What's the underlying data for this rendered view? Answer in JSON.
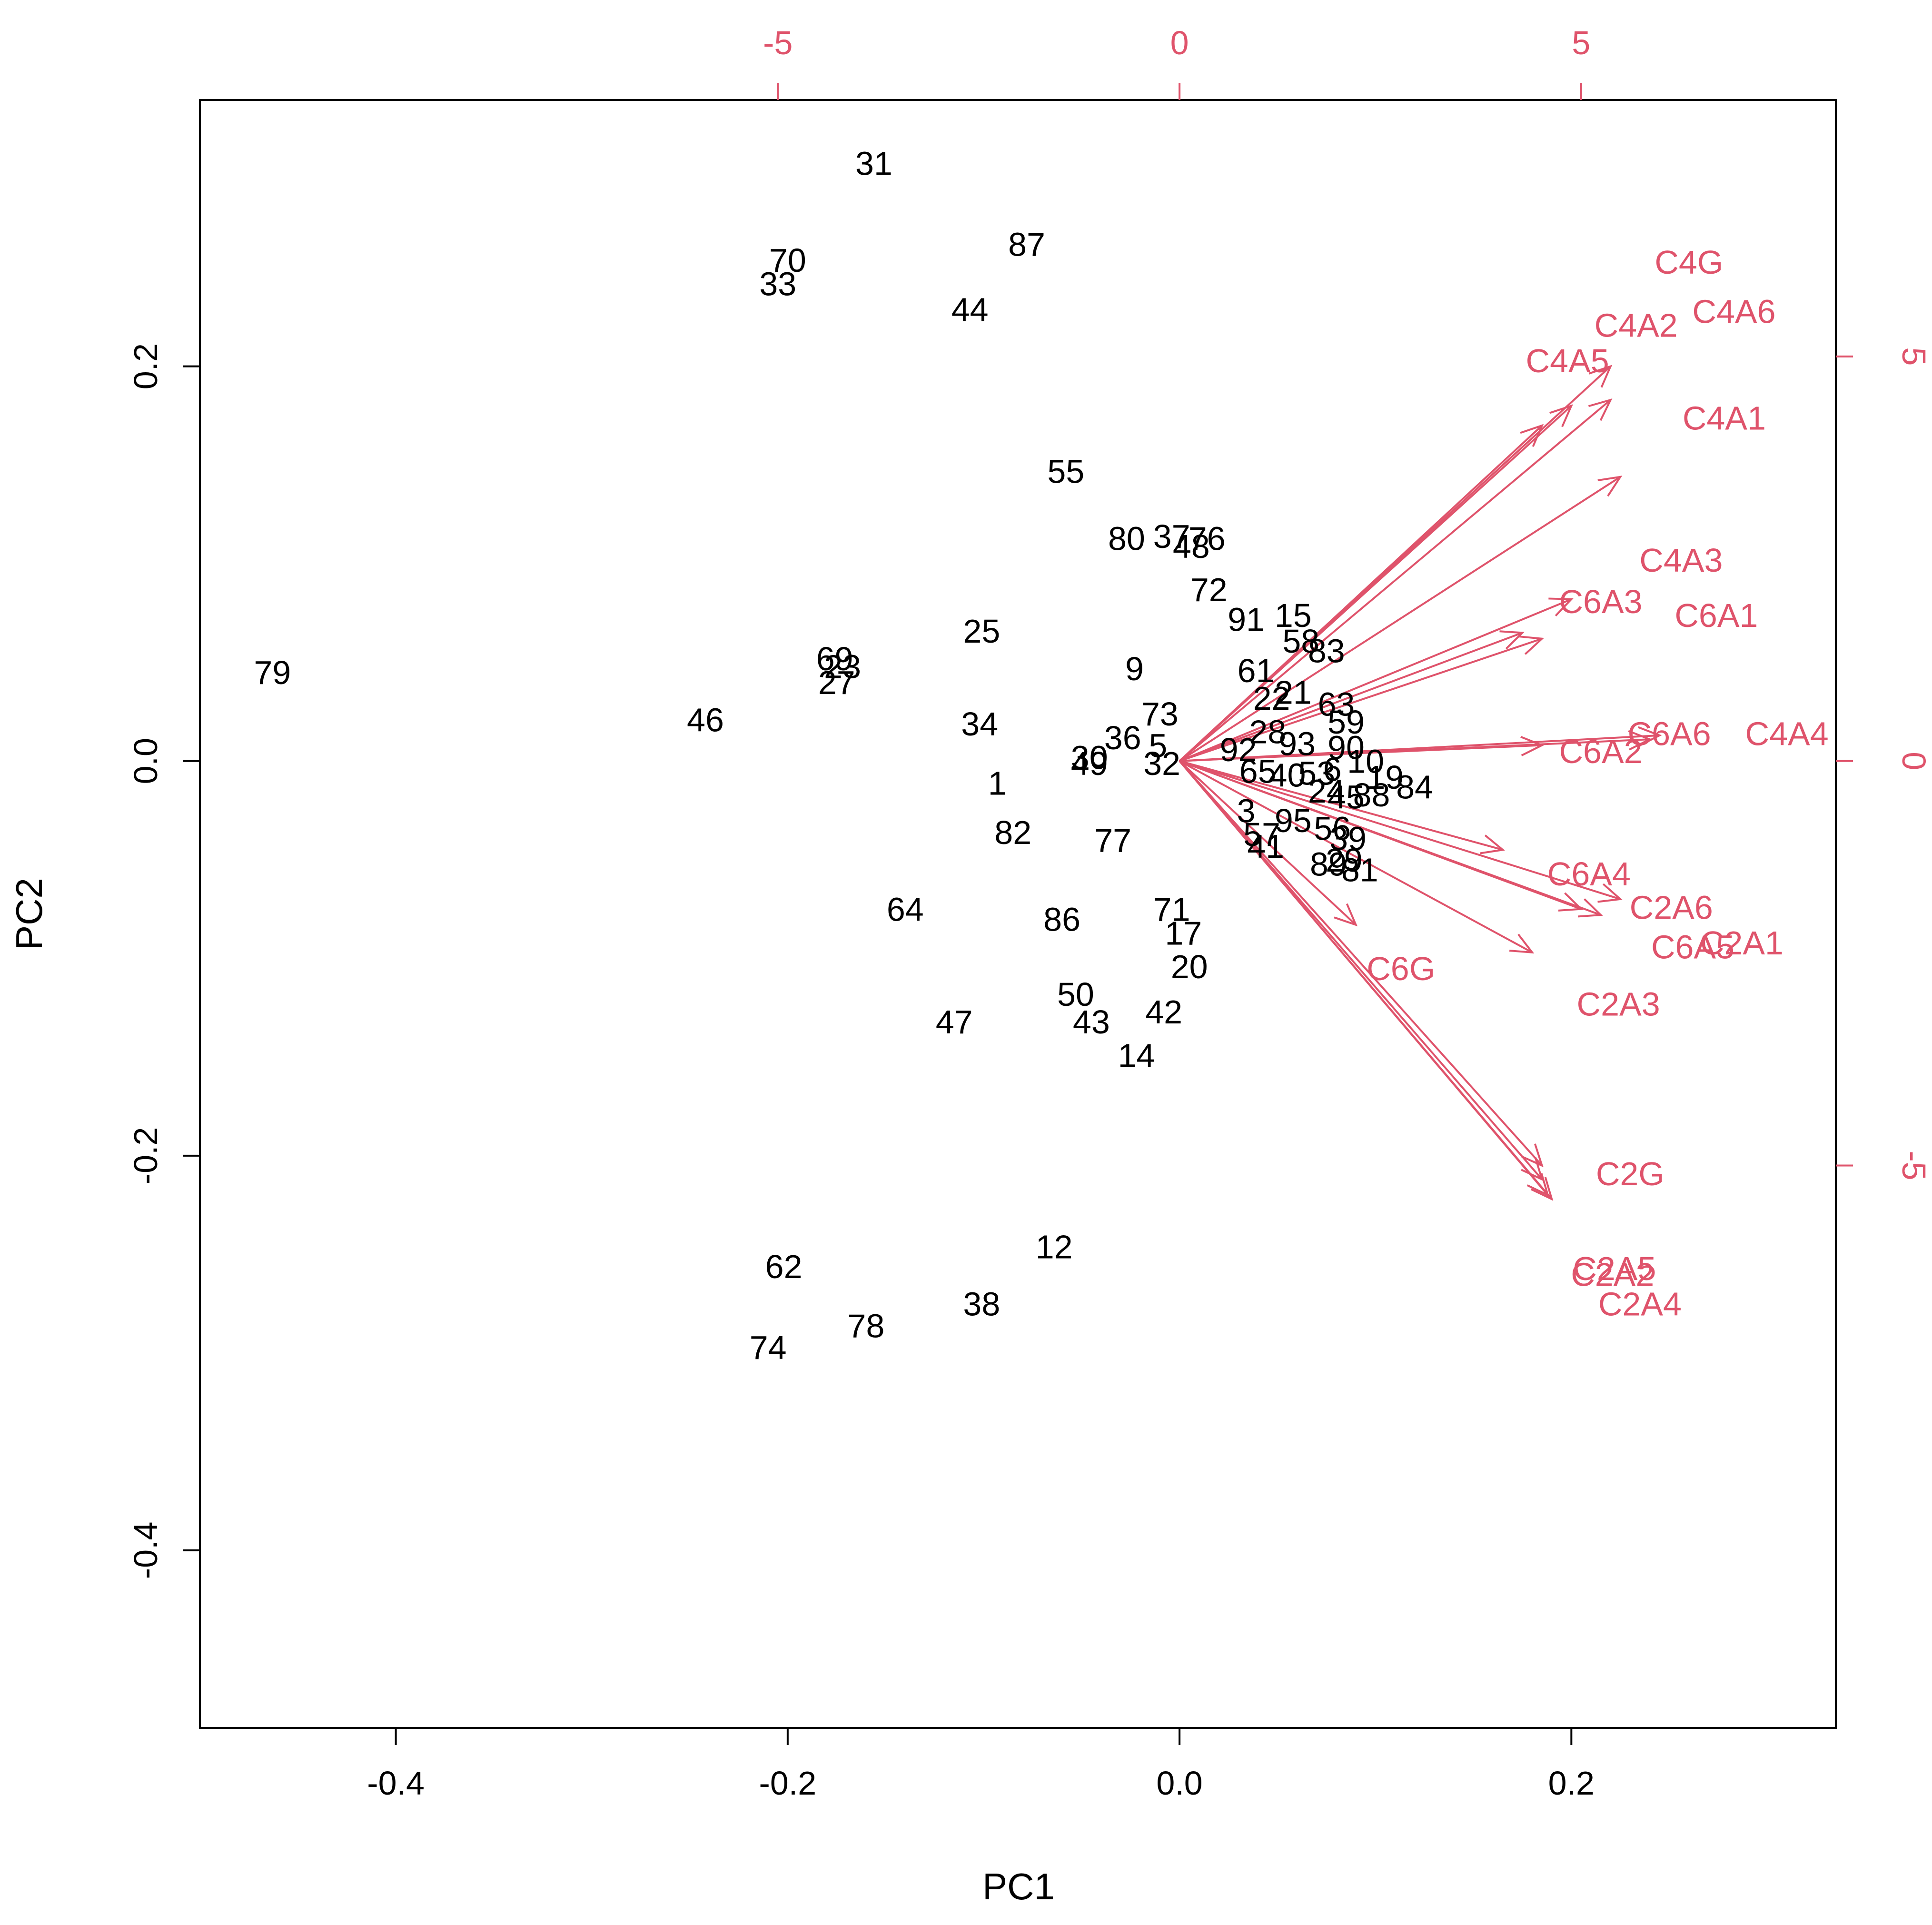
{
  "chart_data": {
    "type": "scatter",
    "subtype": "pca-biplot",
    "title": "",
    "xlabel": "PC1",
    "ylabel": "PC2",
    "xlim": [
      -0.5,
      0.335
    ],
    "ylim": [
      -0.49,
      0.335
    ],
    "xticks": [
      -0.4,
      -0.2,
      0.0,
      0.2
    ],
    "xtick_labels": [
      "-0.4",
      "-0.2",
      "0.0",
      "0.2"
    ],
    "yticks": [
      -0.4,
      -0.2,
      0.0,
      0.2
    ],
    "ytick_labels": [
      "-0.4",
      "-0.2",
      "0.0",
      "0.2"
    ],
    "secondary_xticks": [
      -5,
      0,
      5
    ],
    "secondary_xtick_labels": [
      "-5",
      "0",
      "5"
    ],
    "secondary_yticks": [
      -5,
      0,
      5
    ],
    "secondary_ytick_labels": [
      "-5",
      "0",
      "5"
    ],
    "observation_color": "#000000",
    "loading_color": "#DF536B",
    "observations": [
      {
        "label": "31",
        "x": -0.156,
        "y": 0.303
      },
      {
        "label": "70",
        "x": -0.2,
        "y": 0.254
      },
      {
        "label": "33",
        "x": -0.205,
        "y": 0.242
      },
      {
        "label": "87",
        "x": -0.078,
        "y": 0.262
      },
      {
        "label": "44",
        "x": -0.107,
        "y": 0.229
      },
      {
        "label": "55",
        "x": -0.058,
        "y": 0.147
      },
      {
        "label": "80",
        "x": -0.027,
        "y": 0.113
      },
      {
        "label": "37",
        "x": -0.004,
        "y": 0.114
      },
      {
        "label": "76",
        "x": 0.014,
        "y": 0.113
      },
      {
        "label": "48",
        "x": 0.006,
        "y": 0.109
      },
      {
        "label": "72",
        "x": 0.015,
        "y": 0.087
      },
      {
        "label": "91",
        "x": 0.034,
        "y": 0.072
      },
      {
        "label": "15",
        "x": 0.058,
        "y": 0.074
      },
      {
        "label": "58",
        "x": 0.062,
        "y": 0.061
      },
      {
        "label": "83",
        "x": 0.075,
        "y": 0.056
      },
      {
        "label": "25",
        "x": -0.101,
        "y": 0.066
      },
      {
        "label": "9",
        "x": -0.023,
        "y": 0.047
      },
      {
        "label": "61",
        "x": 0.039,
        "y": 0.046
      },
      {
        "label": "79",
        "x": -0.463,
        "y": 0.045
      },
      {
        "label": "69",
        "x": -0.176,
        "y": 0.052
      },
      {
        "label": "23",
        "x": -0.172,
        "y": 0.048
      },
      {
        "label": "27",
        "x": -0.175,
        "y": 0.04
      },
      {
        "label": "46",
        "x": -0.242,
        "y": 0.021
      },
      {
        "label": "34",
        "x": -0.102,
        "y": 0.019
      },
      {
        "label": "73",
        "x": -0.01,
        "y": 0.024
      },
      {
        "label": "36",
        "x": -0.029,
        "y": 0.012
      },
      {
        "label": "5",
        "x": -0.011,
        "y": 0.008
      },
      {
        "label": "30",
        "x": -0.046,
        "y": 0.002
      },
      {
        "label": "49",
        "x": -0.046,
        "y": -0.001
      },
      {
        "label": "32",
        "x": -0.009,
        "y": -0.001
      },
      {
        "label": "1",
        "x": -0.093,
        "y": -0.011
      },
      {
        "label": "82",
        "x": -0.085,
        "y": -0.036
      },
      {
        "label": "77",
        "x": -0.034,
        "y": -0.04
      },
      {
        "label": "64",
        "x": -0.14,
        "y": -0.075
      },
      {
        "label": "86",
        "x": -0.06,
        "y": -0.08
      },
      {
        "label": "71",
        "x": -0.004,
        "y": -0.075
      },
      {
        "label": "17",
        "x": 0.002,
        "y": -0.087
      },
      {
        "label": "20",
        "x": 0.005,
        "y": -0.104
      },
      {
        "label": "50",
        "x": -0.053,
        "y": -0.118
      },
      {
        "label": "43",
        "x": -0.045,
        "y": -0.132
      },
      {
        "label": "47",
        "x": -0.115,
        "y": -0.132
      },
      {
        "label": "42",
        "x": -0.008,
        "y": -0.127
      },
      {
        "label": "14",
        "x": -0.022,
        "y": -0.149
      },
      {
        "label": "12",
        "x": -0.064,
        "y": -0.246
      },
      {
        "label": "62",
        "x": -0.202,
        "y": -0.256
      },
      {
        "label": "38",
        "x": -0.101,
        "y": -0.275
      },
      {
        "label": "78",
        "x": -0.16,
        "y": -0.286
      },
      {
        "label": "74",
        "x": -0.21,
        "y": -0.297
      },
      {
        "label": "21",
        "x": 0.058,
        "y": 0.035
      },
      {
        "label": "22",
        "x": 0.047,
        "y": 0.032
      },
      {
        "label": "63",
        "x": 0.08,
        "y": 0.029
      },
      {
        "label": "59",
        "x": 0.085,
        "y": 0.02
      },
      {
        "label": "28",
        "x": 0.045,
        "y": 0.015
      },
      {
        "label": "93",
        "x": 0.06,
        "y": 0.009
      },
      {
        "label": "92",
        "x": 0.03,
        "y": 0.006
      },
      {
        "label": "90",
        "x": 0.085,
        "y": 0.007
      },
      {
        "label": "10",
        "x": 0.095,
        "y": 0.0
      },
      {
        "label": "65",
        "x": 0.04,
        "y": -0.005
      },
      {
        "label": "40",
        "x": 0.055,
        "y": -0.007
      },
      {
        "label": "53",
        "x": 0.07,
        "y": -0.006
      },
      {
        "label": "6",
        "x": 0.078,
        "y": -0.004
      },
      {
        "label": "19",
        "x": 0.105,
        "y": -0.008
      },
      {
        "label": "84",
        "x": 0.12,
        "y": -0.013
      },
      {
        "label": "88",
        "x": 0.098,
        "y": -0.017
      },
      {
        "label": "24",
        "x": 0.075,
        "y": -0.015
      },
      {
        "label": "45",
        "x": 0.085,
        "y": -0.018
      },
      {
        "label": "3",
        "x": 0.034,
        "y": -0.025
      },
      {
        "label": "95",
        "x": 0.058,
        "y": -0.03
      },
      {
        "label": "56",
        "x": 0.078,
        "y": -0.034
      },
      {
        "label": "57",
        "x": 0.042,
        "y": -0.037
      },
      {
        "label": "41",
        "x": 0.044,
        "y": -0.043
      },
      {
        "label": "39",
        "x": 0.086,
        "y": -0.039
      },
      {
        "label": "89",
        "x": 0.076,
        "y": -0.052
      },
      {
        "label": "29",
        "x": 0.084,
        "y": -0.05
      },
      {
        "label": "81",
        "x": 0.092,
        "y": -0.055
      }
    ],
    "loadings": [
      {
        "label": "C4G",
        "x": 0.22,
        "y": 0.2,
        "label_x": 0.26,
        "label_y": 0.253
      },
      {
        "label": "C4A6",
        "x": 0.22,
        "y": 0.183,
        "label_x": 0.283,
        "label_y": 0.228
      },
      {
        "label": "C4A2",
        "x": 0.2,
        "y": 0.18,
        "label_x": 0.233,
        "label_y": 0.221
      },
      {
        "label": "C4A5",
        "x": 0.185,
        "y": 0.17,
        "label_x": 0.198,
        "label_y": 0.203
      },
      {
        "label": "C4A1",
        "x": 0.225,
        "y": 0.144,
        "label_x": 0.278,
        "label_y": 0.174
      },
      {
        "label": "C4A3",
        "x": 0.2,
        "y": 0.082,
        "label_x": 0.256,
        "label_y": 0.102
      },
      {
        "label": "C6A3",
        "x": 0.175,
        "y": 0.065,
        "label_x": 0.215,
        "label_y": 0.081
      },
      {
        "label": "C6A1",
        "x": 0.185,
        "y": 0.062,
        "label_x": 0.274,
        "label_y": 0.074
      },
      {
        "label": "C6A6",
        "x": 0.245,
        "y": 0.013,
        "label_x": 0.25,
        "label_y": 0.014
      },
      {
        "label": "C4A4",
        "x": 0.24,
        "y": 0.011,
        "label_x": 0.31,
        "label_y": 0.014
      },
      {
        "label": "C6A2",
        "x": 0.185,
        "y": 0.008,
        "label_x": 0.215,
        "label_y": 0.005
      },
      {
        "label": "C6A4",
        "x": 0.165,
        "y": -0.045,
        "label_x": 0.209,
        "label_y": -0.057
      },
      {
        "label": "C2A6",
        "x": 0.225,
        "y": -0.07,
        "label_x": 0.251,
        "label_y": -0.074
      },
      {
        "label": "C6A5",
        "x": 0.205,
        "y": -0.075,
        "label_x": 0.262,
        "label_y": -0.094
      },
      {
        "label": "C2A1",
        "x": 0.215,
        "y": -0.078,
        "label_x": 0.287,
        "label_y": -0.092
      },
      {
        "label": "C2A3",
        "x": 0.18,
        "y": -0.097,
        "label_x": 0.224,
        "label_y": -0.123
      },
      {
        "label": "C6G",
        "x": 0.09,
        "y": -0.083,
        "label_x": 0.113,
        "label_y": -0.105
      },
      {
        "label": "C2G",
        "x": 0.185,
        "y": -0.212,
        "label_x": 0.23,
        "label_y": -0.209
      },
      {
        "label": "C2A2",
        "x": 0.188,
        "y": -0.22,
        "label_x": 0.221,
        "label_y": -0.26
      },
      {
        "label": "C2A5",
        "x": 0.185,
        "y": -0.205,
        "label_x": 0.222,
        "label_y": -0.257
      },
      {
        "label": "C2A4",
        "x": 0.19,
        "y": -0.222,
        "label_x": 0.235,
        "label_y": -0.275
      }
    ]
  }
}
